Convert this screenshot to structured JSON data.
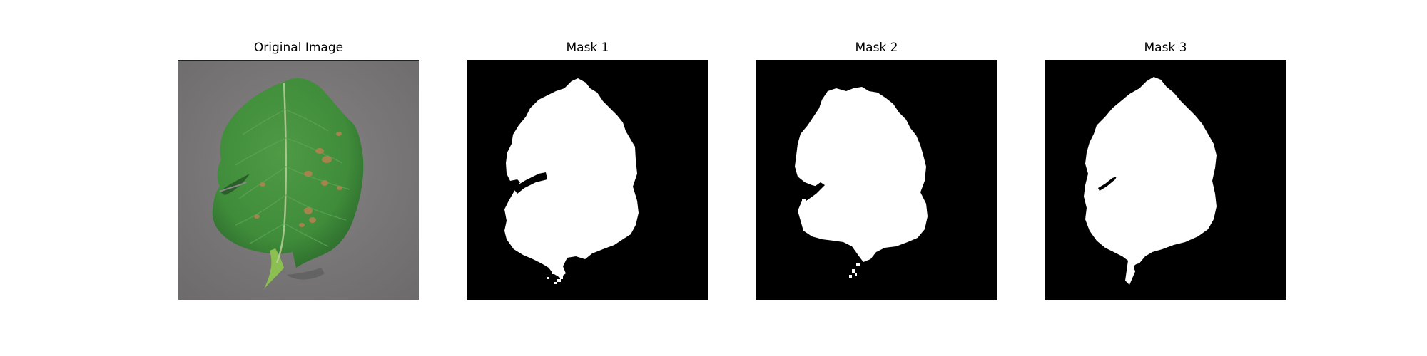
{
  "panels": [
    {
      "title": "Original Image",
      "image": "leaf-photo"
    },
    {
      "title": "Mask 1",
      "image": "leaf-mask"
    },
    {
      "title": "Mask 2",
      "image": "leaf-mask"
    },
    {
      "title": "Mask 3",
      "image": "leaf-mask"
    }
  ],
  "colors": {
    "background": "#7a7878",
    "leaf": "#3f8c3a",
    "leaf_dark": "#2c6a2c",
    "lesion": "#b0824e",
    "mask_background": "#000000",
    "mask_foreground": "#ffffff"
  }
}
